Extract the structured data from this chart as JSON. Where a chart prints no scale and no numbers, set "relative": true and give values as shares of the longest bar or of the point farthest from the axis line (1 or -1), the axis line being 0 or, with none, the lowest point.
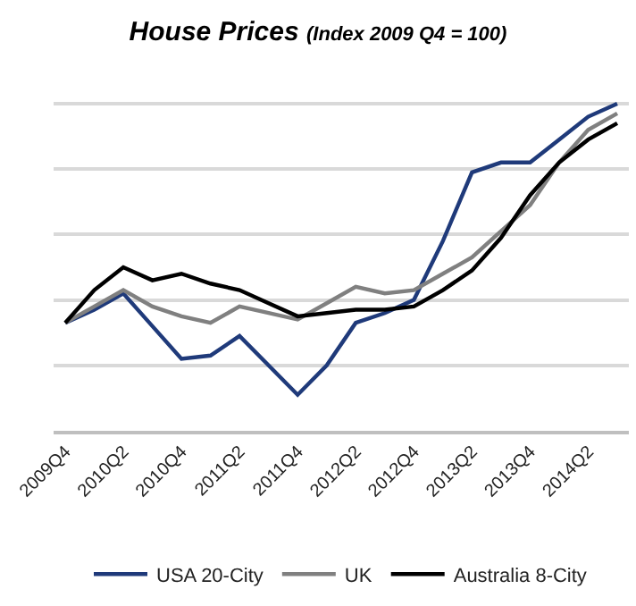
{
  "chart_data": {
    "type": "line",
    "title": "House Prices",
    "subtitle": "(Index 2009 Q4 = 100)",
    "relative": true,
    "grid": "y",
    "legend": "bottom",
    "marker": "none",
    "line_style": "solid",
    "categories": [
      "2009Q4",
      null,
      "2010Q2",
      null,
      "2010Q4",
      null,
      "2011Q2",
      null,
      "2011Q4",
      null,
      "2012Q2",
      null,
      "2012Q4",
      null,
      "2013Q2",
      null,
      "2013Q4",
      null,
      "2014Q2",
      null
    ],
    "series": [
      {
        "name": "USA 20-City",
        "color": "#1f3a7a",
        "values": [
          0.33,
          0.37,
          0.42,
          0.32,
          0.22,
          0.23,
          0.29,
          0.2,
          0.11,
          0.2,
          0.33,
          0.36,
          0.4,
          0.58,
          0.79,
          0.82,
          0.82,
          0.89,
          0.96,
          1
        ]
      },
      {
        "name": "UK",
        "color": "#808080",
        "values": [
          0.33,
          0.38,
          0.43,
          0.38,
          0.35,
          0.33,
          0.38,
          0.36,
          0.34,
          0.39,
          0.44,
          0.42,
          0.43,
          0.48,
          0.53,
          0.61,
          0.69,
          0.82,
          0.92,
          0.97
        ]
      },
      {
        "name": "Australia 8-City",
        "color": "#000000",
        "values": [
          0.33,
          0.43,
          0.5,
          0.46,
          0.48,
          0.45,
          0.43,
          0.39,
          0.35,
          0.36,
          0.37,
          0.37,
          0.38,
          0.43,
          0.49,
          0.59,
          0.72,
          0.82,
          0.89,
          0.94
        ]
      }
    ]
  }
}
